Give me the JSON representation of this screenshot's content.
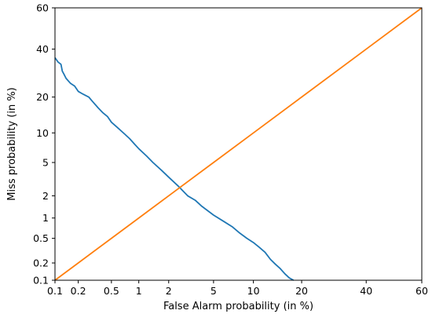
{
  "chart_data": {
    "type": "line",
    "title": "",
    "xlabel": "False Alarm probability (in %)",
    "ylabel": "Miss probability (in %)",
    "scale": "normal-deviate (DET)",
    "xlim": [
      0.1,
      60
    ],
    "ylim": [
      0.1,
      60
    ],
    "x_ticks": [
      0.1,
      0.2,
      0.5,
      1,
      2,
      5,
      10,
      20,
      40,
      60
    ],
    "x_tick_labels": [
      "0.1",
      "0.2",
      "0.5",
      "1",
      "2",
      "5",
      "10",
      "20",
      "40",
      "60"
    ],
    "y_ticks": [
      0.1,
      0.2,
      0.5,
      1,
      2,
      5,
      10,
      20,
      40,
      60
    ],
    "y_tick_labels": [
      "0.1",
      "0.2",
      "0.5",
      "1",
      "2",
      "5",
      "10",
      "20",
      "40",
      "60"
    ],
    "grid": false,
    "legend": "none",
    "series": [
      {
        "color": "#1f77b4",
        "points": [
          [
            0.1,
            36
          ],
          [
            0.11,
            34
          ],
          [
            0.12,
            33
          ],
          [
            0.125,
            30
          ],
          [
            0.13,
            29
          ],
          [
            0.14,
            27
          ],
          [
            0.16,
            25
          ],
          [
            0.18,
            24
          ],
          [
            0.2,
            22
          ],
          [
            0.23,
            21
          ],
          [
            0.27,
            20
          ],
          [
            0.3,
            18.5
          ],
          [
            0.35,
            16.5
          ],
          [
            0.4,
            15
          ],
          [
            0.45,
            14
          ],
          [
            0.5,
            12.5
          ],
          [
            0.6,
            11
          ],
          [
            0.7,
            9.8
          ],
          [
            0.8,
            8.8
          ],
          [
            0.9,
            7.8
          ],
          [
            1.0,
            7.0
          ],
          [
            1.2,
            5.9
          ],
          [
            1.4,
            5.0
          ],
          [
            1.7,
            4.1
          ],
          [
            2.0,
            3.4
          ],
          [
            2.5,
            2.6
          ],
          [
            3.0,
            2.0
          ],
          [
            3.5,
            1.75
          ],
          [
            4.0,
            1.45
          ],
          [
            5.0,
            1.1
          ],
          [
            6.0,
            0.9
          ],
          [
            7.0,
            0.75
          ],
          [
            8.0,
            0.6
          ],
          [
            9.0,
            0.5
          ],
          [
            10.0,
            0.43
          ],
          [
            11.0,
            0.36
          ],
          [
            12.0,
            0.3
          ],
          [
            13.0,
            0.23
          ],
          [
            14.0,
            0.19
          ],
          [
            15.0,
            0.16
          ],
          [
            16.0,
            0.13
          ],
          [
            17.0,
            0.11
          ],
          [
            18.0,
            0.1
          ]
        ]
      },
      {
        "color": "#ff7f0e",
        "points": [
          [
            0.1,
            0.1
          ],
          [
            0.2,
            0.2
          ],
          [
            0.5,
            0.5
          ],
          [
            1,
            1
          ],
          [
            2,
            2
          ],
          [
            5,
            5
          ],
          [
            10,
            10
          ],
          [
            20,
            20
          ],
          [
            40,
            40
          ],
          [
            60,
            60
          ]
        ]
      }
    ]
  }
}
